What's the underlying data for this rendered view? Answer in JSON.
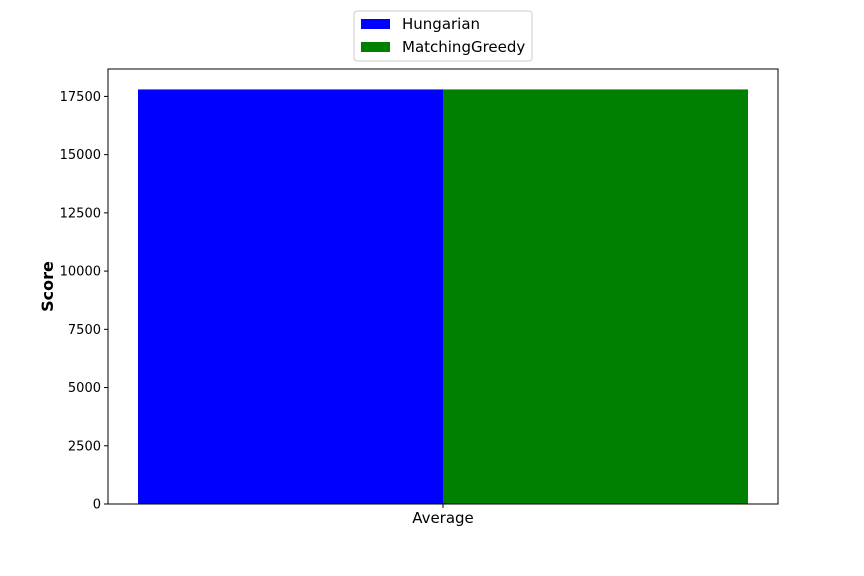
{
  "chart_data": {
    "type": "bar",
    "categories": [
      "Average"
    ],
    "series": [
      {
        "name": "Hungarian",
        "values": [
          17800
        ],
        "color": "#0000ff"
      },
      {
        "name": "MatchingGreedy",
        "values": [
          17800
        ],
        "color": "#008000"
      }
    ],
    "title": "",
    "xlabel": "",
    "ylabel": "Score",
    "ylim": [
      0,
      18677
    ],
    "yticks": [
      0,
      2500,
      5000,
      7500,
      10000,
      12500,
      15000,
      17500
    ],
    "ytick_labels": [
      "0",
      "2500",
      "5000",
      "7500",
      "10000",
      "12500",
      "15000",
      "17500"
    ],
    "grid": false,
    "legend_position": "top-center"
  }
}
